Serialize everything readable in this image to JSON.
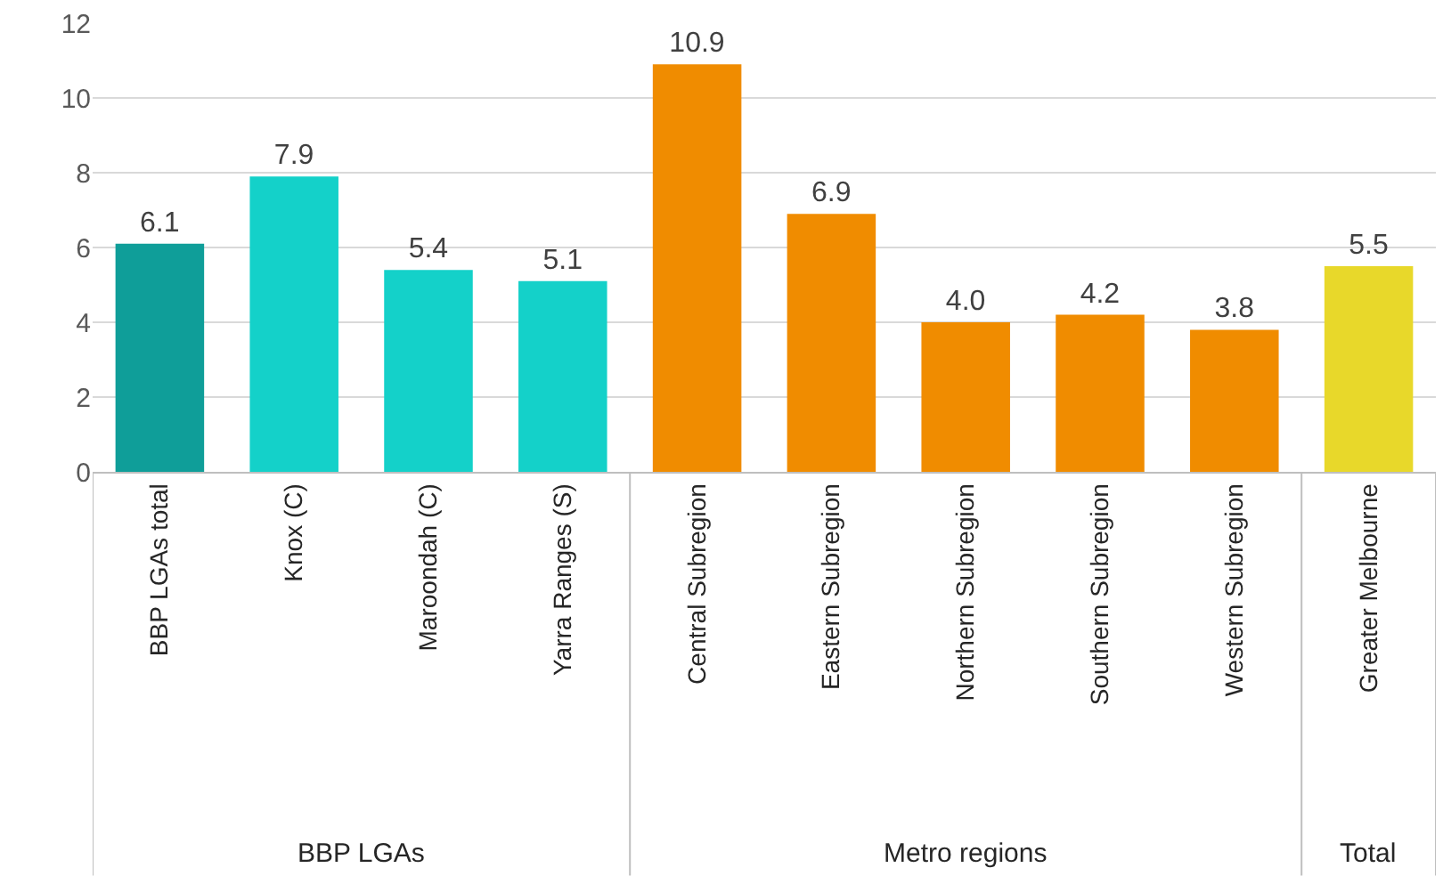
{
  "chart_data": {
    "type": "bar",
    "categories": [
      "BBP LGAs total",
      "Knox (C)",
      "Maroondah (C)",
      "Yarra Ranges (S)",
      "Central Subregion",
      "Eastern Subregion",
      "Northern Subregion",
      "Southern Subregion",
      "Western Subregion",
      "Greater Melbourne"
    ],
    "series": [
      {
        "colors": [
          "#0f9e99",
          "#14d1c9",
          "#14d1c9",
          "#14d1c9",
          null,
          null,
          null,
          null,
          null,
          null
        ],
        "values": [
          6.1,
          7.9,
          5.4,
          5.1,
          null,
          null,
          null,
          null,
          null,
          null
        ],
        "value_labels": [
          "6.1",
          "7.9",
          "5.4",
          "5.1",
          null,
          null,
          null,
          null,
          null,
          null
        ]
      },
      {
        "colors": [
          null,
          null,
          null,
          null,
          "#f08c00",
          "#f08c00",
          "#f08c00",
          "#f08c00",
          "#f08c00",
          null
        ],
        "values": [
          null,
          null,
          null,
          null,
          10.9,
          6.9,
          4.0,
          4.2,
          3.8,
          null
        ],
        "value_labels": [
          null,
          null,
          null,
          null,
          "10.9",
          "6.9",
          "4.0",
          "4.2",
          "3.8",
          null
        ]
      },
      {
        "colors": [
          null,
          null,
          null,
          null,
          null,
          null,
          null,
          null,
          null,
          "#e8d82a"
        ],
        "values": [
          null,
          null,
          null,
          null,
          null,
          null,
          null,
          null,
          null,
          5.5
        ],
        "value_labels": [
          null,
          null,
          null,
          null,
          null,
          null,
          null,
          null,
          null,
          "5.5"
        ]
      }
    ],
    "annotations": [
      "BBP LGAs",
      "Metro regions",
      "Total"
    ],
    "ylim": [
      0,
      12
    ],
    "yticks": [
      0,
      2,
      4,
      6,
      8,
      10,
      12
    ],
    "grid": "y"
  }
}
